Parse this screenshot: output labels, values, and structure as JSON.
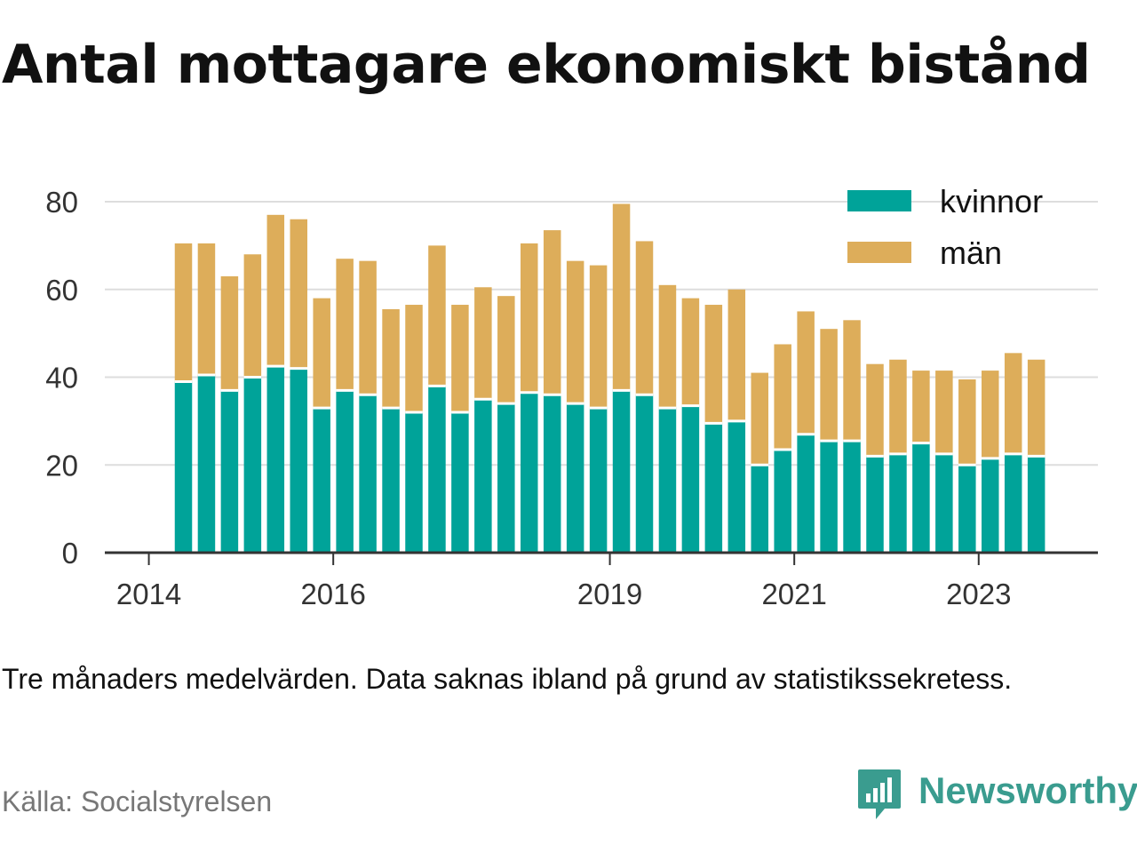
{
  "title": "Antal mottagare ekonomiskt bistånd",
  "note": "Tre månaders medelvärden. Data saknas ibland på grund av statistikssekretess.",
  "source": "Källa: Socialstyrelsen",
  "brand": {
    "name": "Newsworthy",
    "icon": "newsworthy-logo-icon"
  },
  "colors": {
    "kvinnor": "#00a399",
    "man": "#ddad5a",
    "grid": "#dddddd",
    "axis": "#333333",
    "text": "#333333"
  },
  "chart_data": {
    "type": "bar",
    "stacked": true,
    "ylim": [
      0,
      80
    ],
    "yticks": [
      0,
      20,
      40,
      60,
      80
    ],
    "xticks": [
      "2014",
      "2016",
      "2019",
      "2021",
      "2023"
    ],
    "legend_position": "top-right",
    "grid": true,
    "series": [
      {
        "name": "kvinnor",
        "values": [
          39,
          40.5,
          37,
          40,
          42.5,
          42,
          33,
          37,
          36,
          33,
          32,
          38,
          32,
          35,
          34,
          36.5,
          36,
          34,
          33,
          37,
          36,
          33,
          33.5,
          29.5,
          30,
          20,
          23.5,
          27,
          25.5,
          25.5,
          22,
          22.5,
          25,
          22.5,
          20,
          21.5,
          22.5,
          22
        ]
      },
      {
        "name": "män",
        "values": [
          31.5,
          30,
          26,
          28,
          34.5,
          34,
          25,
          30,
          30.5,
          22.5,
          24.5,
          32,
          24.5,
          25.5,
          24.5,
          34,
          37.5,
          32.5,
          32.5,
          42.5,
          35,
          28,
          24.5,
          27,
          30,
          21,
          24,
          28,
          25.5,
          27.5,
          21,
          21.5,
          16.5,
          19,
          19.5,
          20,
          23,
          22
        ]
      }
    ]
  }
}
